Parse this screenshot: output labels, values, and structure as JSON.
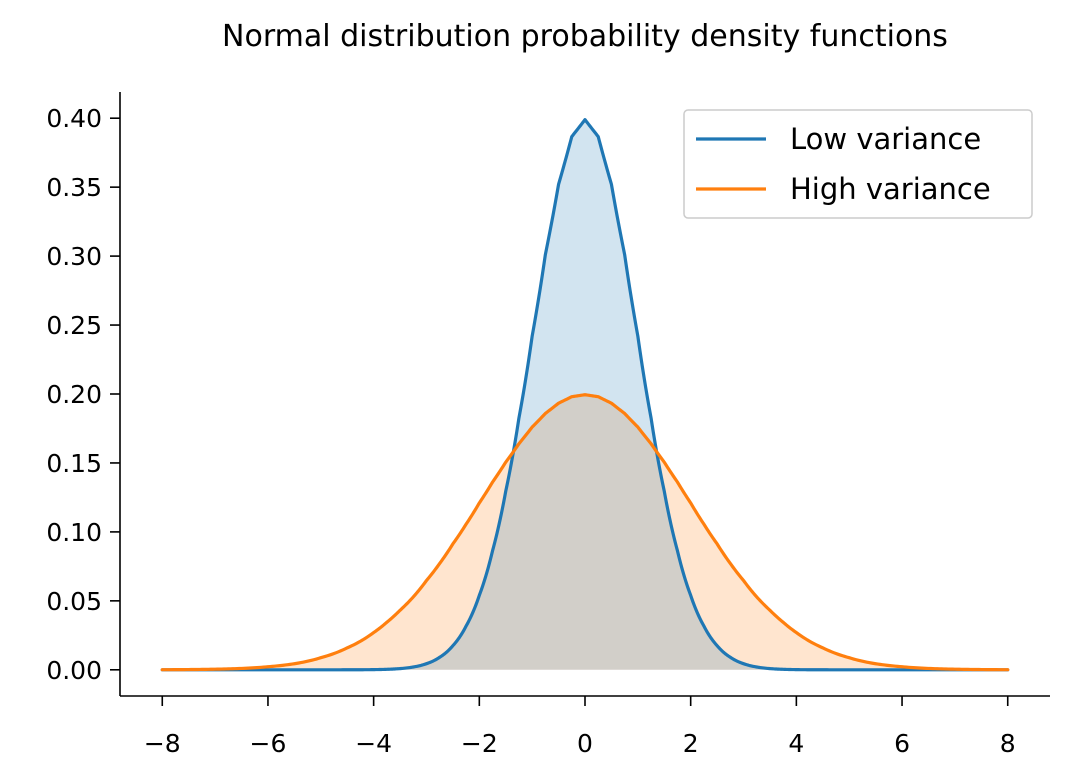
{
  "chart_data": {
    "type": "area",
    "title": "Normal distribution probability density functions",
    "xlabel": "",
    "ylabel": "",
    "xlim": [
      -8.8,
      8.8
    ],
    "ylim": [
      -0.019,
      0.419
    ],
    "x_ticks": [
      -8,
      -6,
      -4,
      -2,
      0,
      2,
      4,
      6,
      8
    ],
    "x_tick_labels": [
      "−8",
      "−6",
      "−4",
      "−2",
      "0",
      "2",
      "4",
      "6",
      "8"
    ],
    "y_ticks": [
      0.0,
      0.05,
      0.1,
      0.15,
      0.2,
      0.25,
      0.3,
      0.35,
      0.4
    ],
    "y_tick_labels": [
      "0.00",
      "0.05",
      "0.10",
      "0.15",
      "0.20",
      "0.25",
      "0.30",
      "0.35",
      "0.40"
    ],
    "grid": false,
    "legend_position": "top-right",
    "x": [
      -8.0,
      -7.5,
      -7.0,
      -6.5,
      -6.0,
      -5.5,
      -5.0,
      -4.5,
      -4.0,
      -3.75,
      -3.5,
      -3.25,
      -3.0,
      -2.75,
      -2.5,
      -2.25,
      -2.0,
      -1.75,
      -1.5,
      -1.25,
      -1.0,
      -0.75,
      -0.5,
      -0.25,
      0.0,
      0.25,
      0.5,
      0.75,
      1.0,
      1.25,
      1.5,
      1.75,
      2.0,
      2.25,
      2.5,
      2.75,
      3.0,
      3.25,
      3.5,
      3.75,
      4.0,
      4.5,
      5.0,
      5.5,
      6.0,
      6.5,
      7.0,
      7.5,
      8.0
    ],
    "series": [
      {
        "name": "Low variance",
        "color": "#1f77b4",
        "fill": "#d2e3f0",
        "values": [
          0.0,
          0.0,
          0.0,
          0.0,
          0.0,
          0.0,
          1.5e-06,
          1.6e-05,
          0.000134,
          0.000353,
          0.000873,
          0.002029,
          0.004432,
          0.009094,
          0.017528,
          0.03174,
          0.053991,
          0.086277,
          0.129518,
          0.182649,
          0.241971,
          0.301137,
          0.352065,
          0.386668,
          0.398942,
          0.386668,
          0.352065,
          0.301137,
          0.241971,
          0.182649,
          0.129518,
          0.086277,
          0.053991,
          0.03174,
          0.017528,
          0.009094,
          0.004432,
          0.002029,
          0.000873,
          0.000353,
          0.000134,
          1.6e-05,
          1.5e-06,
          0.0,
          0.0,
          0.0,
          0.0,
          0.0,
          0.0
        ]
      },
      {
        "name": "High variance",
        "color": "#ff7f0e",
        "fill": "#ffe3cd",
        "values": [
          6.7e-05,
          0.000179,
          0.000436,
          0.000982,
          0.002216,
          0.004396,
          0.008764,
          0.015906,
          0.026995,
          0.034482,
          0.043166,
          0.052843,
          0.064759,
          0.077118,
          0.091325,
          0.105618,
          0.120985,
          0.136102,
          0.150569,
          0.163948,
          0.176033,
          0.185897,
          0.193334,
          0.198048,
          0.199471,
          0.198048,
          0.193334,
          0.185897,
          0.176033,
          0.163948,
          0.150569,
          0.136102,
          0.120985,
          0.105618,
          0.091325,
          0.077118,
          0.064759,
          0.052843,
          0.043166,
          0.034482,
          0.026995,
          0.015906,
          0.008764,
          0.004396,
          0.002216,
          0.000982,
          0.000436,
          0.000179,
          6.7e-05
        ]
      }
    ]
  }
}
